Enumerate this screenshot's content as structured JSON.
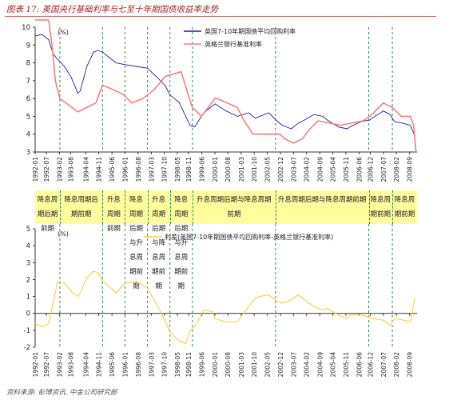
{
  "figure": {
    "title": "图表 17: 英国央行基础利率与七至十年期国债收益率走势",
    "source": "资料来源: 彭博资讯, 中金公司研究部"
  },
  "colors": {
    "gilt_yield": "#1f1f8f",
    "base_rate": "#f08080",
    "spread": "#f5d040",
    "phase_band": "#fffd9c",
    "phase_divider": "#2e8b57"
  },
  "phases": [
    {
      "label": "降息周期后期前期"
    },
    {
      "label": "降息周期后期前期"
    },
    {
      "label": "升息周期前期"
    },
    {
      "label": "降息周期后期与升息周期前期"
    },
    {
      "label": "升息周期后期与降息周期前期"
    },
    {
      "label": "降息周期后期与升息周期前期"
    },
    {
      "label": "升息周期后期与降息周期前期"
    },
    {
      "label": "升息周期后期与降息周期前期"
    },
    {
      "label": "降息周期前期"
    },
    {
      "label": "降息周期前期"
    }
  ],
  "chart_data": [
    {
      "type": "line",
      "title": "",
      "y_unit": "(%)",
      "ylim": [
        3,
        10
      ],
      "y_ticks": [
        "3",
        "4",
        "5",
        "6",
        "7",
        "8",
        "9",
        "10"
      ],
      "x_ticks": [
        "1992-01",
        "1992-07",
        "1993-02",
        "1993-08",
        "1994-04",
        "1994-11",
        "1995-06",
        "1996-01",
        "1996-08",
        "1997-03",
        "1997-10",
        "1998-05",
        "1998-11",
        "1999-06",
        "2000-01",
        "2000-08",
        "2001-03",
        "2001-10",
        "2002-05",
        "2002-12",
        "2003-07",
        "2004-02",
        "2004-09",
        "2005-04",
        "2005-11",
        "2006-06",
        "2006-12",
        "2007-07",
        "2008-02",
        "2008-09"
      ],
      "legend_position": "top-right",
      "grid": false,
      "series": [
        {
          "name": "英国7-10年期国债平均回购利率",
          "x": [
            1992.0,
            1992.3,
            1992.6,
            1992.8,
            1993.0,
            1993.3,
            1993.6,
            1993.9,
            1994.0,
            1994.3,
            1994.6,
            1994.8,
            1995.0,
            1995.3,
            1995.6,
            1996.0,
            1996.5,
            1997.0,
            1997.5,
            1997.8,
            1998.0,
            1998.4,
            1998.7,
            1998.9,
            1999.1,
            1999.5,
            1999.9,
            2000.0,
            2000.5,
            2001.0,
            2001.5,
            2001.8,
            2002.0,
            2002.4,
            2002.8,
            2003.0,
            2003.4,
            2003.7,
            2004.0,
            2004.4,
            2004.8,
            2005.0,
            2005.5,
            2005.9,
            2006.0,
            2006.5,
            2006.9,
            2007.0,
            2007.5,
            2007.8,
            2008.0,
            2008.4,
            2008.7,
            2008.9
          ],
          "values": [
            9.5,
            9.6,
            9.3,
            8.5,
            8.2,
            7.8,
            7.2,
            6.3,
            6.4,
            7.8,
            8.6,
            8.7,
            8.6,
            8.3,
            8.0,
            7.9,
            7.8,
            7.7,
            7.1,
            6.7,
            6.2,
            5.8,
            5.0,
            4.5,
            4.4,
            5.2,
            5.6,
            5.7,
            5.3,
            5.0,
            5.2,
            4.9,
            5.0,
            5.2,
            4.7,
            4.5,
            4.3,
            4.6,
            4.8,
            5.1,
            5.0,
            4.8,
            4.4,
            4.3,
            4.4,
            4.7,
            4.8,
            4.9,
            5.3,
            5.1,
            4.7,
            4.6,
            4.5,
            3.9
          ]
        },
        {
          "name": "英格兰银行基准利率",
          "x": [
            1992.0,
            1992.6,
            1992.75,
            1992.9,
            1993.1,
            1993.9,
            1994.7,
            1995.0,
            1995.9,
            1996.3,
            1996.8,
            1997.3,
            1997.8,
            1998.5,
            1998.8,
            1999.0,
            1999.4,
            1999.7,
            2000.0,
            2000.1,
            2001.0,
            2001.3,
            2001.7,
            2002.0,
            2002.9,
            2003.1,
            2003.5,
            2003.9,
            2004.2,
            2004.6,
            2005.6,
            2006.6,
            2006.9,
            2007.1,
            2007.5,
            2007.9,
            2008.3,
            2008.7,
            2008.85,
            2008.95
          ],
          "values": [
            10.4,
            10.4,
            9.0,
            7.0,
            6.0,
            5.25,
            5.75,
            6.75,
            6.25,
            5.75,
            6.0,
            6.5,
            7.25,
            7.5,
            6.25,
            5.5,
            5.0,
            5.5,
            6.0,
            6.0,
            5.5,
            4.75,
            4.0,
            4.0,
            4.0,
            3.75,
            3.5,
            3.75,
            4.25,
            4.75,
            4.5,
            4.75,
            5.0,
            5.25,
            5.75,
            5.5,
            5.0,
            5.0,
            4.5,
            3.0
          ]
        }
      ]
    },
    {
      "type": "line",
      "title": "",
      "y_unit": "(%)",
      "ylim": [
        -2,
        5
      ],
      "y_ticks": [
        "-2",
        "-1",
        "0",
        "1",
        "2",
        "3",
        "4",
        "5"
      ],
      "x_ticks": [
        "1992-01",
        "1992-07",
        "1993-02",
        "1993-08",
        "1994-04",
        "1994-11",
        "1995-06",
        "1996-01",
        "1996-08",
        "1997-03",
        "1997-10",
        "1998-05",
        "1998-11",
        "1999-06",
        "2000-01",
        "2000-08",
        "2001-03",
        "2001-10",
        "2002-05",
        "2002-12",
        "2003-07",
        "2004-02",
        "2004-09",
        "2005-04",
        "2005-11",
        "2006-06",
        "2006-12",
        "2007-07",
        "2008-02",
        "2008-09"
      ],
      "legend_position": "top-center",
      "grid": false,
      "series": [
        {
          "name": "利差(英国7-10年期国债平均回购利率-英格兰银行基准利率)",
          "x": [
            1992.0,
            1992.3,
            1992.6,
            1992.8,
            1993.0,
            1993.3,
            1993.6,
            1993.9,
            1994.0,
            1994.3,
            1994.6,
            1994.8,
            1995.0,
            1995.3,
            1995.6,
            1996.0,
            1996.5,
            1997.0,
            1997.5,
            1997.8,
            1998.0,
            1998.4,
            1998.7,
            1998.9,
            1999.1,
            1999.5,
            1999.9,
            2000.0,
            2000.5,
            2001.0,
            2001.5,
            2001.8,
            2002.0,
            2002.4,
            2002.8,
            2003.0,
            2003.4,
            2003.7,
            2004.0,
            2004.4,
            2004.8,
            2005.0,
            2005.5,
            2005.9,
            2006.0,
            2006.5,
            2006.9,
            2007.0,
            2007.5,
            2007.8,
            2008.0,
            2008.4,
            2008.7,
            2008.9
          ],
          "values": [
            -0.6,
            -0.8,
            -0.6,
            0.6,
            1.9,
            1.8,
            1.3,
            1.0,
            1.2,
            2.1,
            2.5,
            2.4,
            1.9,
            1.6,
            1.2,
            1.8,
            1.9,
            1.5,
            0.3,
            -0.5,
            -1.1,
            -1.6,
            -1.8,
            -1.0,
            -0.8,
            0.2,
            0.1,
            -0.3,
            -0.5,
            -0.5,
            0.4,
            0.9,
            1.0,
            1.1,
            0.7,
            0.6,
            0.8,
            1.1,
            0.8,
            0.4,
            0.2,
            0.3,
            -0.1,
            -0.3,
            -0.1,
            -0.1,
            -0.2,
            -0.3,
            -0.4,
            -0.7,
            -0.3,
            -0.4,
            -0.5,
            0.9
          ]
        }
      ]
    }
  ]
}
